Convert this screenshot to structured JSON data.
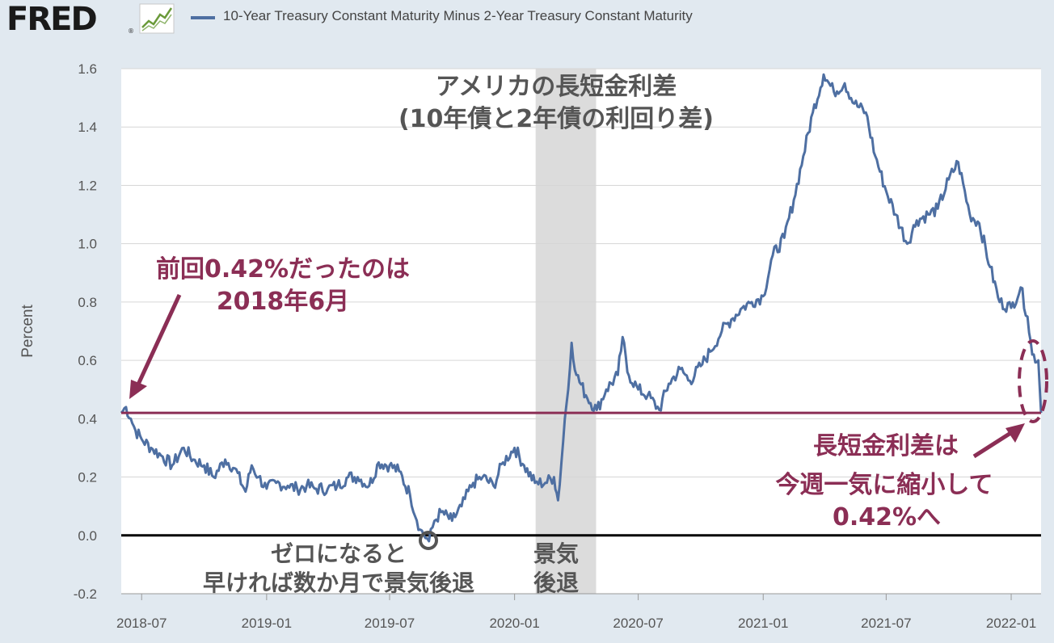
{
  "header": {
    "logo_text": "FRED",
    "logo_reg": "®",
    "legend_series": "10-Year Treasury Constant Maturity Minus 2-Year Treasury Constant Maturity"
  },
  "colors": {
    "series": "#4e6fa2",
    "annotation": "#8b2e55",
    "recession": "#dcdcdc",
    "background": "#e1e9f0",
    "plot": "#ffffff"
  },
  "chart_data": {
    "type": "line",
    "ylabel": "Percent",
    "ylim": [
      -0.2,
      1.6
    ],
    "yticks": [
      "1.6",
      "1.4",
      "1.2",
      "1.0",
      "0.8",
      "0.6",
      "0.4",
      "0.2",
      "0.0",
      "-0.2"
    ],
    "ytick_values": [
      1.6,
      1.4,
      1.2,
      1.0,
      0.8,
      0.6,
      0.4,
      0.2,
      0.0,
      -0.2
    ],
    "xticks": [
      "2018-07",
      "2019-01",
      "2019-07",
      "2020-01",
      "2020-07",
      "2021-01",
      "2021-07",
      "2022-01"
    ],
    "xlim": [
      "2018-06-01",
      "2022-02-14"
    ],
    "grid": true,
    "recession": {
      "start": "2020-02-01",
      "end": "2020-04-30"
    },
    "series": [
      {
        "name": "10-Year Treasury Constant Maturity Minus 2-Year Treasury Constant Maturity",
        "points": [
          [
            "2018-06-01",
            0.42
          ],
          [
            "2018-06-08",
            0.44
          ],
          [
            "2018-06-15",
            0.4
          ],
          [
            "2018-06-22",
            0.36
          ],
          [
            "2018-07-01",
            0.33
          ],
          [
            "2018-07-15",
            0.3
          ],
          [
            "2018-08-01",
            0.27
          ],
          [
            "2018-08-15",
            0.24
          ],
          [
            "2018-09-01",
            0.3
          ],
          [
            "2018-09-15",
            0.26
          ],
          [
            "2018-10-01",
            0.24
          ],
          [
            "2018-10-15",
            0.2
          ],
          [
            "2018-11-01",
            0.26
          ],
          [
            "2018-11-15",
            0.23
          ],
          [
            "2018-12-01",
            0.15
          ],
          [
            "2018-12-10",
            0.24
          ],
          [
            "2018-12-20",
            0.2
          ],
          [
            "2019-01-01",
            0.16
          ],
          [
            "2019-01-15",
            0.18
          ],
          [
            "2019-02-01",
            0.17
          ],
          [
            "2019-02-15",
            0.16
          ],
          [
            "2019-03-01",
            0.17
          ],
          [
            "2019-03-15",
            0.16
          ],
          [
            "2019-04-01",
            0.16
          ],
          [
            "2019-04-15",
            0.17
          ],
          [
            "2019-05-01",
            0.2
          ],
          [
            "2019-05-15",
            0.2
          ],
          [
            "2019-06-01",
            0.17
          ],
          [
            "2019-06-15",
            0.25
          ],
          [
            "2019-07-01",
            0.24
          ],
          [
            "2019-07-15",
            0.22
          ],
          [
            "2019-07-31",
            0.14
          ],
          [
            "2019-08-15",
            0.02
          ],
          [
            "2019-08-28",
            -0.02
          ],
          [
            "2019-09-05",
            0.05
          ],
          [
            "2019-09-15",
            0.08
          ],
          [
            "2019-10-01",
            0.05
          ],
          [
            "2019-10-15",
            0.1
          ],
          [
            "2019-11-01",
            0.18
          ],
          [
            "2019-11-15",
            0.2
          ],
          [
            "2019-12-01",
            0.17
          ],
          [
            "2019-12-15",
            0.25
          ],
          [
            "2020-01-01",
            0.3
          ],
          [
            "2020-01-15",
            0.24
          ],
          [
            "2020-01-31",
            0.18
          ],
          [
            "2020-02-15",
            0.18
          ],
          [
            "2020-02-28",
            0.2
          ],
          [
            "2020-03-05",
            0.12
          ],
          [
            "2020-03-10",
            0.25
          ],
          [
            "2020-03-15",
            0.4
          ],
          [
            "2020-03-20",
            0.5
          ],
          [
            "2020-03-25",
            0.66
          ],
          [
            "2020-04-01",
            0.55
          ],
          [
            "2020-04-15",
            0.48
          ],
          [
            "2020-05-01",
            0.43
          ],
          [
            "2020-05-15",
            0.5
          ],
          [
            "2020-06-01",
            0.55
          ],
          [
            "2020-06-08",
            0.68
          ],
          [
            "2020-06-15",
            0.56
          ],
          [
            "2020-07-01",
            0.5
          ],
          [
            "2020-07-15",
            0.48
          ],
          [
            "2020-08-01",
            0.43
          ],
          [
            "2020-08-15",
            0.52
          ],
          [
            "2020-09-01",
            0.57
          ],
          [
            "2020-09-15",
            0.53
          ],
          [
            "2020-10-01",
            0.58
          ],
          [
            "2020-10-15",
            0.63
          ],
          [
            "2020-11-01",
            0.7
          ],
          [
            "2020-11-15",
            0.74
          ],
          [
            "2020-12-01",
            0.78
          ],
          [
            "2020-12-15",
            0.8
          ],
          [
            "2021-01-01",
            0.82
          ],
          [
            "2021-01-15",
            0.96
          ],
          [
            "2021-02-01",
            1.02
          ],
          [
            "2021-02-15",
            1.15
          ],
          [
            "2021-03-01",
            1.3
          ],
          [
            "2021-03-15",
            1.45
          ],
          [
            "2021-03-31",
            1.58
          ],
          [
            "2021-04-15",
            1.52
          ],
          [
            "2021-05-01",
            1.55
          ],
          [
            "2021-05-15",
            1.48
          ],
          [
            "2021-06-01",
            1.45
          ],
          [
            "2021-06-15",
            1.3
          ],
          [
            "2021-07-01",
            1.18
          ],
          [
            "2021-07-15",
            1.1
          ],
          [
            "2021-08-01",
            1.0
          ],
          [
            "2021-08-15",
            1.08
          ],
          [
            "2021-09-01",
            1.1
          ],
          [
            "2021-09-15",
            1.12
          ],
          [
            "2021-10-01",
            1.22
          ],
          [
            "2021-10-15",
            1.28
          ],
          [
            "2021-11-01",
            1.1
          ],
          [
            "2021-11-15",
            1.07
          ],
          [
            "2021-12-01",
            0.92
          ],
          [
            "2021-12-15",
            0.8
          ],
          [
            "2022-01-01",
            0.78
          ],
          [
            "2022-01-15",
            0.85
          ],
          [
            "2022-01-25",
            0.75
          ],
          [
            "2022-02-01",
            0.62
          ],
          [
            "2022-02-10",
            0.6
          ],
          [
            "2022-02-14",
            0.42
          ]
        ]
      }
    ],
    "reference_line": {
      "value": 0.42
    },
    "zero_line": {
      "value": 0.0
    },
    "title_lines": [
      "アメリカの長短金利差",
      "(10年債と2年債の利回り差)"
    ],
    "annotations": {
      "left_lines": [
        "前回0.42%だったのは",
        "2018年6月"
      ],
      "right_lines": [
        "長短金利差は",
        "今週一気に縮小して",
        "0.42%へ"
      ],
      "zero_lines": [
        "ゼロになると",
        "早ければ数か月で景気後退"
      ],
      "recession_lines": [
        "景気",
        "後退"
      ]
    }
  }
}
